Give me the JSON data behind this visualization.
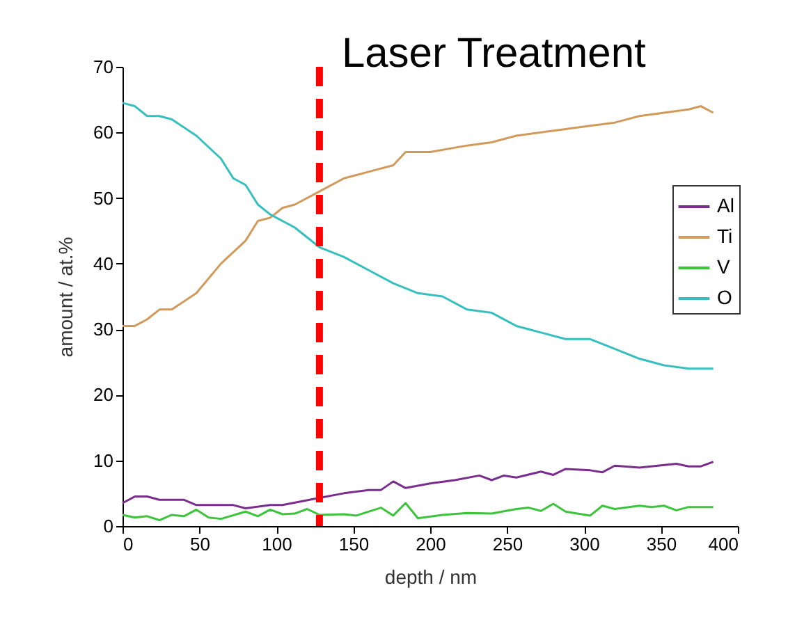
{
  "chart_data": {
    "type": "line",
    "xlabel": "depth / nm",
    "ylabel": "amount / at.%",
    "xlim": [
      0,
      400
    ],
    "xticks": [
      0,
      50,
      100,
      150,
      200,
      250,
      300,
      350,
      400
    ],
    "ylim": [
      0,
      70
    ],
    "yticks": [
      0,
      10,
      20,
      30,
      40,
      50,
      60,
      70
    ],
    "legend": "right",
    "grid": false,
    "ref_lines": [
      {
        "axis": "x",
        "value": 128,
        "label": "Laser Treatment",
        "color": "#ff0000",
        "line_style": "dashed"
      }
    ],
    "series": [
      {
        "name": "Al",
        "color": "#7b2d8e",
        "x": [
          0,
          8,
          16,
          24,
          40,
          48,
          64,
          72,
          80,
          96,
          104,
          128,
          144,
          160,
          168,
          176,
          184,
          200,
          216,
          232,
          240,
          248,
          256,
          272,
          280,
          288,
          304,
          312,
          320,
          336,
          360,
          368,
          376,
          384
        ],
        "values": [
          3.5,
          4.5,
          4.5,
          4,
          4,
          3.2,
          3.2,
          3.2,
          2.7,
          3.2,
          3.2,
          4.3,
          5,
          5.5,
          5.5,
          6.8,
          5.8,
          6.5,
          7,
          7.7,
          7,
          7.7,
          7.4,
          8.3,
          7.8,
          8.7,
          8.5,
          8.2,
          9.2,
          8.9,
          9.5,
          9.1,
          9.1,
          9.8
        ]
      },
      {
        "name": "Ti",
        "color": "#d29a5a",
        "x": [
          0,
          8,
          16,
          24,
          32,
          48,
          64,
          80,
          88,
          96,
          104,
          112,
          128,
          144,
          160,
          176,
          184,
          200,
          224,
          240,
          256,
          272,
          288,
          304,
          320,
          336,
          352,
          368,
          376,
          384
        ],
        "values": [
          30.5,
          30.5,
          31.5,
          33,
          33,
          35.5,
          40,
          43.5,
          46.5,
          47,
          48.5,
          49,
          51,
          53,
          54,
          55,
          57,
          57,
          58,
          58.5,
          59.5,
          60,
          60.5,
          61,
          61.5,
          62.5,
          63,
          63.5,
          64,
          63
        ]
      },
      {
        "name": "V",
        "color": "#3cc43c",
        "x": [
          0,
          8,
          16,
          24,
          32,
          40,
          48,
          56,
          64,
          80,
          88,
          96,
          104,
          112,
          120,
          128,
          144,
          152,
          168,
          176,
          184,
          192,
          208,
          224,
          240,
          256,
          264,
          272,
          280,
          288,
          304,
          312,
          320,
          336,
          344,
          352,
          360,
          368,
          384
        ],
        "values": [
          1.7,
          1.3,
          1.5,
          0.9,
          1.7,
          1.5,
          2.5,
          1.3,
          1.1,
          2.2,
          1.5,
          2.5,
          1.8,
          1.9,
          2.6,
          1.7,
          1.8,
          1.6,
          2.8,
          1.6,
          3.5,
          1.2,
          1.7,
          2,
          1.9,
          2.6,
          2.8,
          2.3,
          3.4,
          2.2,
          1.6,
          3.1,
          2.6,
          3.1,
          2.9,
          3.1,
          2.4,
          2.9,
          2.9
        ]
      },
      {
        "name": "O",
        "color": "#35bfbf",
        "x": [
          0,
          8,
          16,
          24,
          32,
          48,
          64,
          72,
          80,
          88,
          96,
          112,
          128,
          144,
          160,
          176,
          192,
          208,
          224,
          240,
          256,
          272,
          288,
          304,
          320,
          336,
          352,
          368,
          384
        ],
        "values": [
          64.5,
          64,
          62.5,
          62.5,
          62,
          59.5,
          56,
          53,
          52,
          49,
          47.5,
          45.5,
          42.5,
          41,
          39,
          37,
          35.5,
          35,
          33,
          32.5,
          30.5,
          29.5,
          28.5,
          28.5,
          27,
          25.5,
          24.5,
          24,
          24
        ]
      }
    ]
  }
}
